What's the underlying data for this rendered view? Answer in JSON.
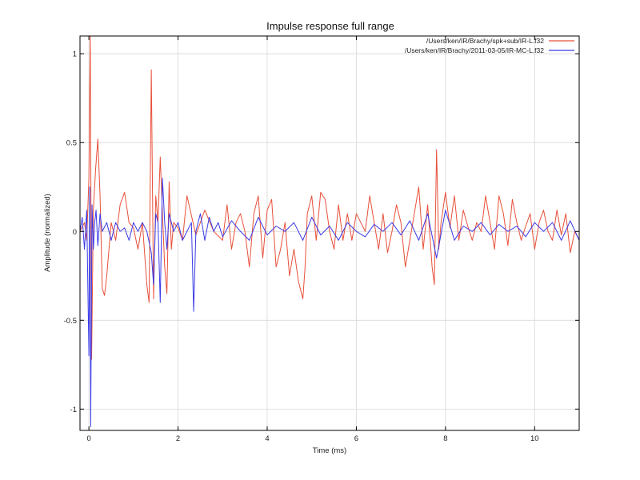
{
  "chart_data": {
    "type": "line",
    "title": "Impulse response full range",
    "xlabel": "Time (ms)",
    "ylabel": "Amplitude (normalized)",
    "xlim": [
      -0.2,
      11
    ],
    "ylim": [
      -1.12,
      1.1
    ],
    "xticks": [
      0,
      2,
      4,
      6,
      8,
      10
    ],
    "xtick_labels": [
      "0",
      "2",
      "4",
      "6",
      "8",
      "10"
    ],
    "yticks": [
      1,
      0.5,
      0,
      -0.5,
      -1
    ],
    "ytick_labels": [
      "1",
      "0.5",
      "0",
      "-0.5",
      "-1"
    ],
    "grid": true,
    "legend_position": "top-right",
    "series": [
      {
        "name": "/Users/ken/IR/Brachy/spk+sub/IR-L.f32",
        "color": "#e8503a",
        "x": [
          -0.2,
          -0.1,
          -0.05,
          0.0,
          0.03,
          0.06,
          0.1,
          0.15,
          0.2,
          0.25,
          0.3,
          0.35,
          0.4,
          0.45,
          0.5,
          0.6,
          0.7,
          0.8,
          0.9,
          1.0,
          1.1,
          1.2,
          1.3,
          1.35,
          1.4,
          1.45,
          1.5,
          1.55,
          1.6,
          1.65,
          1.7,
          1.75,
          1.8,
          1.85,
          1.9,
          2.0,
          2.1,
          2.2,
          2.4,
          2.6,
          2.8,
          3.0,
          3.1,
          3.2,
          3.3,
          3.4,
          3.5,
          3.6,
          3.7,
          3.8,
          3.9,
          4.0,
          4.1,
          4.2,
          4.3,
          4.4,
          4.5,
          4.6,
          4.7,
          4.8,
          4.85,
          4.9,
          5.0,
          5.1,
          5.2,
          5.3,
          5.4,
          5.5,
          5.6,
          5.7,
          5.8,
          5.9,
          6.0,
          6.1,
          6.2,
          6.3,
          6.4,
          6.5,
          6.6,
          6.7,
          6.8,
          6.9,
          7.0,
          7.1,
          7.2,
          7.3,
          7.4,
          7.5,
          7.6,
          7.7,
          7.75,
          7.8,
          7.85,
          7.9,
          8.0,
          8.1,
          8.2,
          8.3,
          8.4,
          8.5,
          8.6,
          8.7,
          8.8,
          8.9,
          9.0,
          9.1,
          9.2,
          9.3,
          9.4,
          9.5,
          9.6,
          9.7,
          9.8,
          9.9,
          10.0,
          10.1,
          10.2,
          10.3,
          10.4,
          10.5,
          10.6,
          10.7,
          10.8,
          10.9,
          11.0
        ],
        "y": [
          0.0,
          0.05,
          -0.05,
          0.3,
          1.12,
          -0.72,
          0.12,
          0.35,
          0.52,
          0.2,
          -0.32,
          -0.36,
          -0.25,
          -0.1,
          0.05,
          -0.05,
          0.15,
          0.22,
          0.05,
          0.02,
          -0.1,
          0.05,
          -0.3,
          -0.4,
          0.91,
          -0.38,
          0.2,
          0.05,
          0.42,
          0.1,
          -0.2,
          -0.35,
          0.28,
          -0.1,
          0.05,
          0.02,
          -0.05,
          0.2,
          -0.02,
          0.12,
          0.0,
          -0.05,
          0.15,
          -0.1,
          0.05,
          0.1,
          0.0,
          -0.2,
          0.1,
          0.2,
          -0.15,
          0.12,
          0.18,
          -0.2,
          -0.1,
          0.05,
          -0.25,
          -0.1,
          -0.28,
          -0.38,
          -0.2,
          0.1,
          0.2,
          -0.05,
          0.22,
          0.18,
          0.0,
          -0.1,
          0.15,
          -0.05,
          0.1,
          -0.05,
          0.1,
          0.05,
          0.0,
          0.2,
          0.05,
          -0.1,
          0.1,
          -0.12,
          0.0,
          0.15,
          0.05,
          -0.2,
          -0.05,
          0.1,
          0.25,
          -0.1,
          0.15,
          -0.2,
          -0.3,
          0.46,
          -0.1,
          0.05,
          0.22,
          0.02,
          0.2,
          -0.05,
          0.12,
          0.03,
          -0.05,
          0.05,
          0.0,
          0.2,
          0.05,
          -0.1,
          0.2,
          0.1,
          -0.08,
          0.18,
          0.05,
          -0.05,
          0.03,
          0.1,
          -0.1,
          0.05,
          0.12,
          0.0,
          -0.05,
          0.12,
          -0.02,
          0.1,
          -0.12,
          0.0,
          -0.05
        ]
      },
      {
        "name": "/Users/ken/IR/Brachy/2011-03-05/IR-MC-L.f32",
        "color": "#3a3ae8",
        "x": [
          -0.2,
          -0.15,
          -0.1,
          -0.05,
          0.0,
          0.02,
          0.04,
          0.07,
          0.1,
          0.13,
          0.16,
          0.2,
          0.25,
          0.3,
          0.4,
          0.5,
          0.6,
          0.7,
          0.8,
          0.9,
          1.0,
          1.1,
          1.2,
          1.3,
          1.4,
          1.45,
          1.5,
          1.55,
          1.6,
          1.65,
          1.7,
          1.75,
          1.8,
          1.9,
          2.0,
          2.1,
          2.2,
          2.3,
          2.35,
          2.4,
          2.5,
          2.6,
          2.7,
          2.8,
          2.9,
          3.0,
          3.2,
          3.4,
          3.6,
          3.8,
          4.0,
          4.2,
          4.4,
          4.6,
          4.8,
          5.0,
          5.2,
          5.4,
          5.6,
          5.8,
          6.0,
          6.2,
          6.4,
          6.6,
          6.8,
          7.0,
          7.2,
          7.4,
          7.6,
          7.8,
          8.0,
          8.2,
          8.4,
          8.6,
          8.8,
          9.0,
          9.2,
          9.4,
          9.6,
          9.8,
          10.0,
          10.2,
          10.4,
          10.6,
          10.8,
          11.0
        ],
        "y": [
          0.0,
          0.08,
          -0.1,
          0.12,
          -0.7,
          0.25,
          -1.1,
          0.15,
          -0.1,
          0.05,
          0.12,
          -0.08,
          0.1,
          0.0,
          0.05,
          -0.05,
          0.05,
          0.0,
          0.02,
          -0.05,
          0.05,
          0.0,
          0.05,
          0.0,
          -0.12,
          -0.3,
          0.1,
          0.05,
          -0.4,
          0.3,
          0.05,
          -0.1,
          0.1,
          0.0,
          0.05,
          -0.05,
          0.0,
          0.05,
          -0.45,
          0.0,
          0.1,
          -0.05,
          0.08,
          0.0,
          0.05,
          -0.03,
          0.06,
          0.0,
          -0.05,
          0.08,
          -0.02,
          0.03,
          0.0,
          0.05,
          -0.05,
          0.08,
          -0.02,
          0.03,
          -0.05,
          0.05,
          0.0,
          -0.03,
          0.04,
          0.0,
          0.05,
          -0.02,
          0.06,
          -0.05,
          0.1,
          -0.15,
          0.12,
          -0.05,
          0.03,
          0.0,
          0.05,
          -0.02,
          0.04,
          0.0,
          0.03,
          -0.03,
          0.05,
          0.0,
          0.05,
          -0.05,
          0.06,
          -0.05
        ]
      }
    ]
  }
}
